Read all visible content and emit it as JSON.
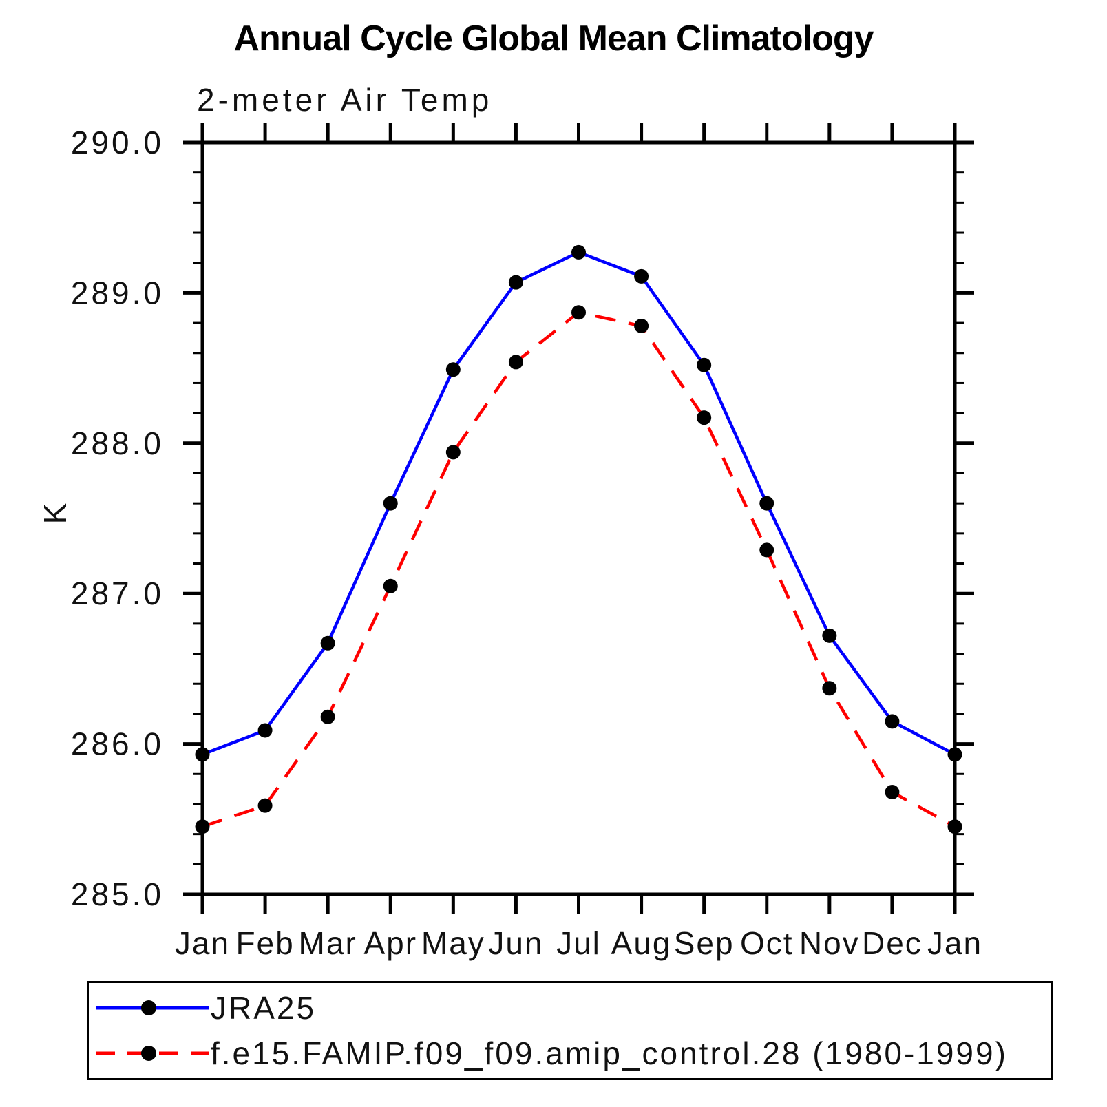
{
  "page": {
    "title": "Annual Cycle Global Mean Climatology",
    "subtitle": "2-meter Air Temp"
  },
  "chart_data": {
    "type": "line",
    "title": "Annual Cycle Global Mean Climatology",
    "subtitle": "2-meter Air Temp",
    "xlabel": "",
    "ylabel": "K",
    "categories": [
      "Jan",
      "Feb",
      "Mar",
      "Apr",
      "May",
      "Jun",
      "Jul",
      "Aug",
      "Sep",
      "Oct",
      "Nov",
      "Dec",
      "Jan"
    ],
    "ylim": [
      285.0,
      290.0
    ],
    "y_major_step": 1.0,
    "y_minor_step": 0.2,
    "y_tick_labels": [
      "285.0",
      "286.0",
      "287.0",
      "288.0",
      "289.0",
      "290.0"
    ],
    "grid": false,
    "legend_position": "bottom",
    "axis_color": "#000000",
    "marker_color": "#000000",
    "series": [
      {
        "name": "JRA25",
        "color": "#0000ff",
        "line_style": "solid",
        "marker": "circle",
        "values": [
          285.93,
          286.09,
          286.67,
          287.6,
          288.49,
          289.07,
          289.27,
          289.11,
          288.52,
          287.6,
          286.72,
          286.15,
          285.93
        ]
      },
      {
        "name": "f.e15.FAMIP.f09_f09.amip_control.28 (1980-1999)",
        "color": "#ff0000",
        "line_style": "dashed",
        "marker": "circle",
        "values": [
          285.45,
          285.59,
          286.18,
          287.05,
          287.94,
          288.54,
          288.87,
          288.78,
          288.17,
          287.29,
          286.37,
          285.68,
          285.45
        ]
      }
    ]
  }
}
